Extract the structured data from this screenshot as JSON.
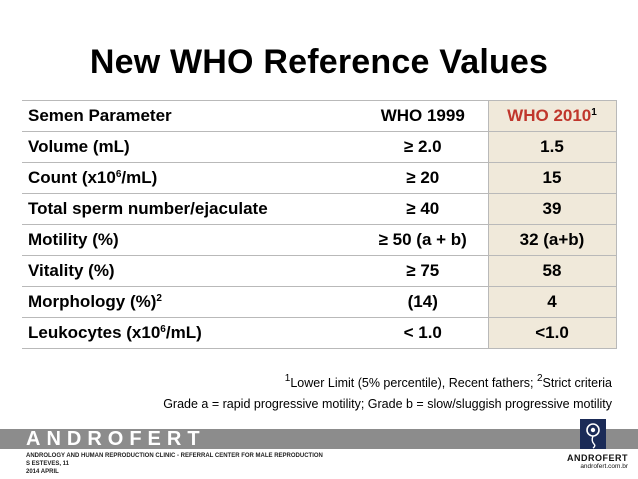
{
  "title": "New WHO Reference Values",
  "table": {
    "headers": [
      "Semen Parameter",
      "WHO 1999",
      "WHO 2010"
    ],
    "header_c2_sup": "1",
    "rows": [
      {
        "param": "Volume (mL)",
        "param_sup": "",
        "param_after": "",
        "who1999": "≥ 2.0",
        "who2010": "1.5"
      },
      {
        "param": "Count (x10",
        "param_sup": "6",
        "param_after": "/mL)",
        "who1999": "≥ 20",
        "who2010": "15"
      },
      {
        "param": "Total sperm number/ejaculate",
        "param_sup": "",
        "param_after": "",
        "who1999": "≥ 40",
        "who2010": "39"
      },
      {
        "param": "Motility (%)",
        "param_sup": "",
        "param_after": "",
        "who1999": "≥ 50 (a + b)",
        "who2010": "32 (a+b)"
      },
      {
        "param": "Vitality (%)",
        "param_sup": "",
        "param_after": "",
        "who1999": "≥ 75",
        "who2010": "58"
      },
      {
        "param": "Morphology (%)",
        "param_sup": "2",
        "param_after": "",
        "who1999": "(14)",
        "who2010": "4"
      },
      {
        "param": "Leukocytes (x10",
        "param_sup": "6",
        "param_after": "/mL)",
        "who1999": "< 1.0",
        "who2010": "<1.0"
      }
    ]
  },
  "notes": {
    "line1_sup1": "1",
    "line1_a": "Lower Limit (5% percentile), Recent fathers; ",
    "line1_sup2": "2",
    "line1_b": "Strict criteria",
    "line2": "Grade a = rapid progressive motility; Grade b = slow/sluggish progressive motility"
  },
  "footer": {
    "brand": "ANDROFERT",
    "line1": "ANDROLOGY AND HUMAN REPRODUCTION CLINIC - REFERRAL CENTER FOR MALE REPRODUCTION",
    "line2": "S ESTEVES, 11",
    "line3": "2014 APRIL",
    "logo_name": "ANDROFERT",
    "logo_url": "androfert.com.br",
    "logo_icon": "androfert-logo-icon"
  },
  "colors": {
    "who2010_bg": "#f0e9da",
    "who2010_header": "#c0362c",
    "footer_band": "#8c8c8c",
    "logo_bg": "#1b2b57"
  }
}
